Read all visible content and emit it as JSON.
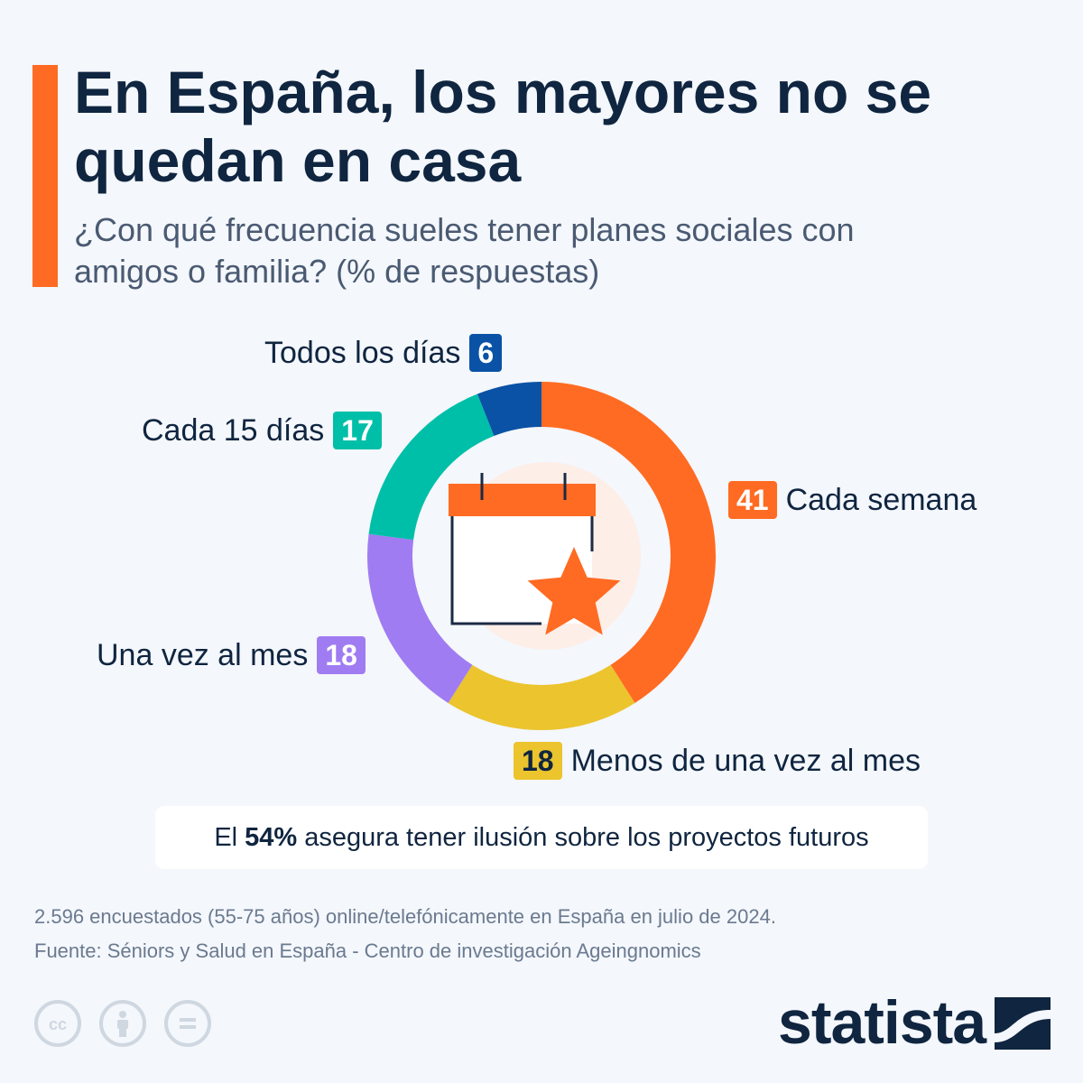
{
  "header": {
    "title": "En España, los mayores no se quedan en casa",
    "subtitle": "¿Con qué frecuencia sueles tener planes sociales con amigos o familia? (% de respuestas)"
  },
  "chart_data": {
    "type": "pie",
    "variant": "donut",
    "categories": [
      "Cada semana",
      "Menos de una vez al mes",
      "Una vez al mes",
      "Cada 15 días",
      "Todos los días"
    ],
    "values": [
      41,
      18,
      18,
      17,
      6
    ],
    "colors": [
      "#ff6b22",
      "#ebc42e",
      "#a07cf2",
      "#00bfa8",
      "#0a52a5"
    ],
    "value_labels": [
      "41",
      "18",
      "18",
      "17",
      "6"
    ],
    "center_icon": "calendar-star-icon"
  },
  "callout": {
    "prefix": "El",
    "highlight": "54%",
    "suffix": "asegura tener ilusión sobre los proyectos futuros"
  },
  "footer": {
    "note": "2.596 encuestados (55-75 años) online/telefónicamente en España en julio de 2024.",
    "source": "Fuente: Séniors y Salud en España - Centro de investigación Ageingnomics",
    "license_icons": [
      "cc-icon",
      "attribution-icon",
      "no-derivatives-icon"
    ],
    "brand": "statista"
  },
  "colors": {
    "accent": "#ff6b22",
    "text": "#0f2540",
    "background": "#f4f7fb"
  }
}
